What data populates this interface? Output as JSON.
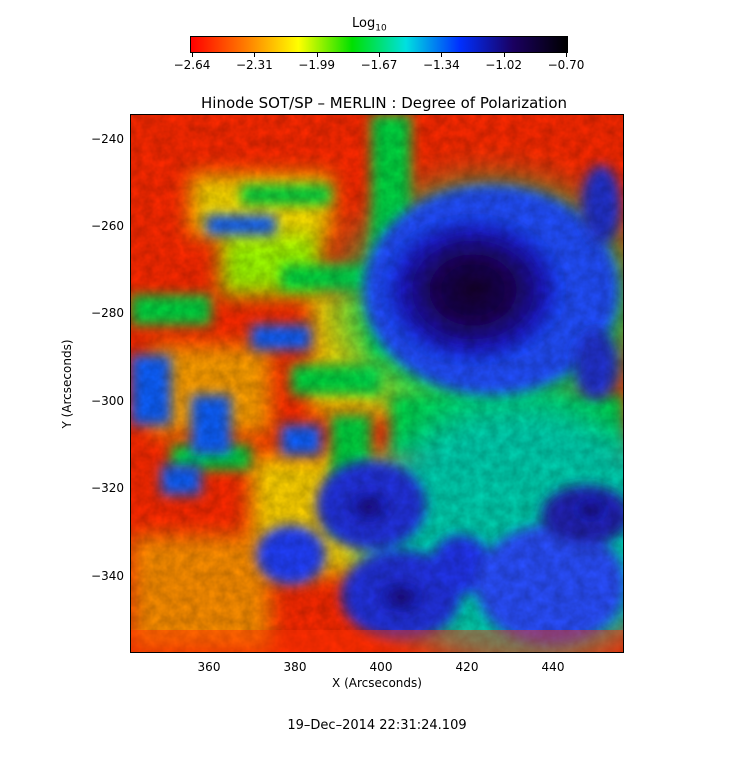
{
  "colorbar": {
    "title": "Log",
    "title_sub": "10",
    "tick_labels": [
      "−2.64",
      "−2.31",
      "−1.99",
      "−1.67",
      "−1.34",
      "−1.02",
      "−0.70"
    ],
    "colors": [
      "#ff0000",
      "#ff7a00",
      "#ffff00",
      "#00e000",
      "#00e0e0",
      "#0030ff",
      "#1a0060",
      "#000000"
    ]
  },
  "title": "Hinode SOT/SP – MERLIN : Degree of Polarization",
  "axes": {
    "xlabel": "X (Arcseconds)",
    "ylabel": "Y (Arcseconds)",
    "xticks": [
      "360",
      "380",
      "400",
      "420",
      "440"
    ],
    "yticks": [
      "−240",
      "−260",
      "−280",
      "−300",
      "−320",
      "−340"
    ]
  },
  "timestamp": "19–Dec–2014 22:31:24.109"
}
